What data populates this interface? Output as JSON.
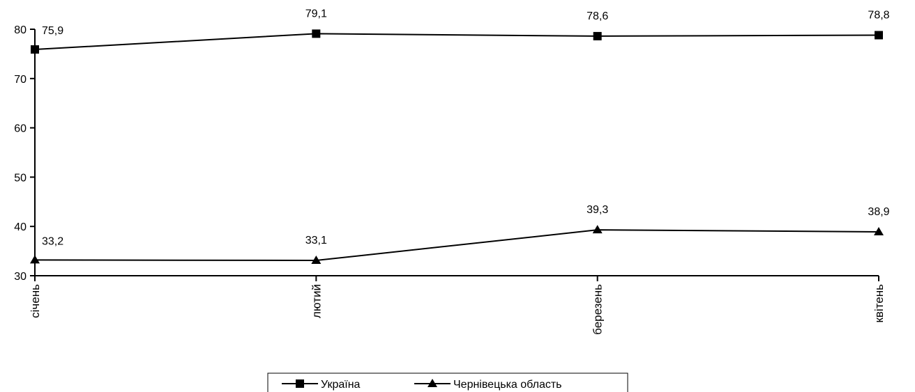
{
  "chart_data": {
    "type": "line",
    "categories": [
      "січень",
      "лютий",
      "березень",
      "квітень"
    ],
    "series": [
      {
        "name": "Україна",
        "marker": "square",
        "values": [
          75.9,
          79.1,
          78.6,
          78.8
        ],
        "labels": [
          "75,9",
          "79,1",
          "78,6",
          "78,8"
        ]
      },
      {
        "name": "Чернівецька область",
        "marker": "triangle",
        "values": [
          33.2,
          33.1,
          39.3,
          38.9
        ],
        "labels": [
          "33,2",
          "33,1",
          "39,3",
          "38,9"
        ]
      }
    ],
    "title": "",
    "xlabel": "",
    "ylabel": "",
    "ylim": [
      30,
      80
    ],
    "yticks": [
      30,
      40,
      50,
      60,
      70,
      80
    ],
    "ytick_labels": [
      "30",
      "40",
      "50",
      "60",
      "70",
      "80"
    ],
    "grid": false,
    "legend": "bottom-center",
    "color": "#000000"
  }
}
